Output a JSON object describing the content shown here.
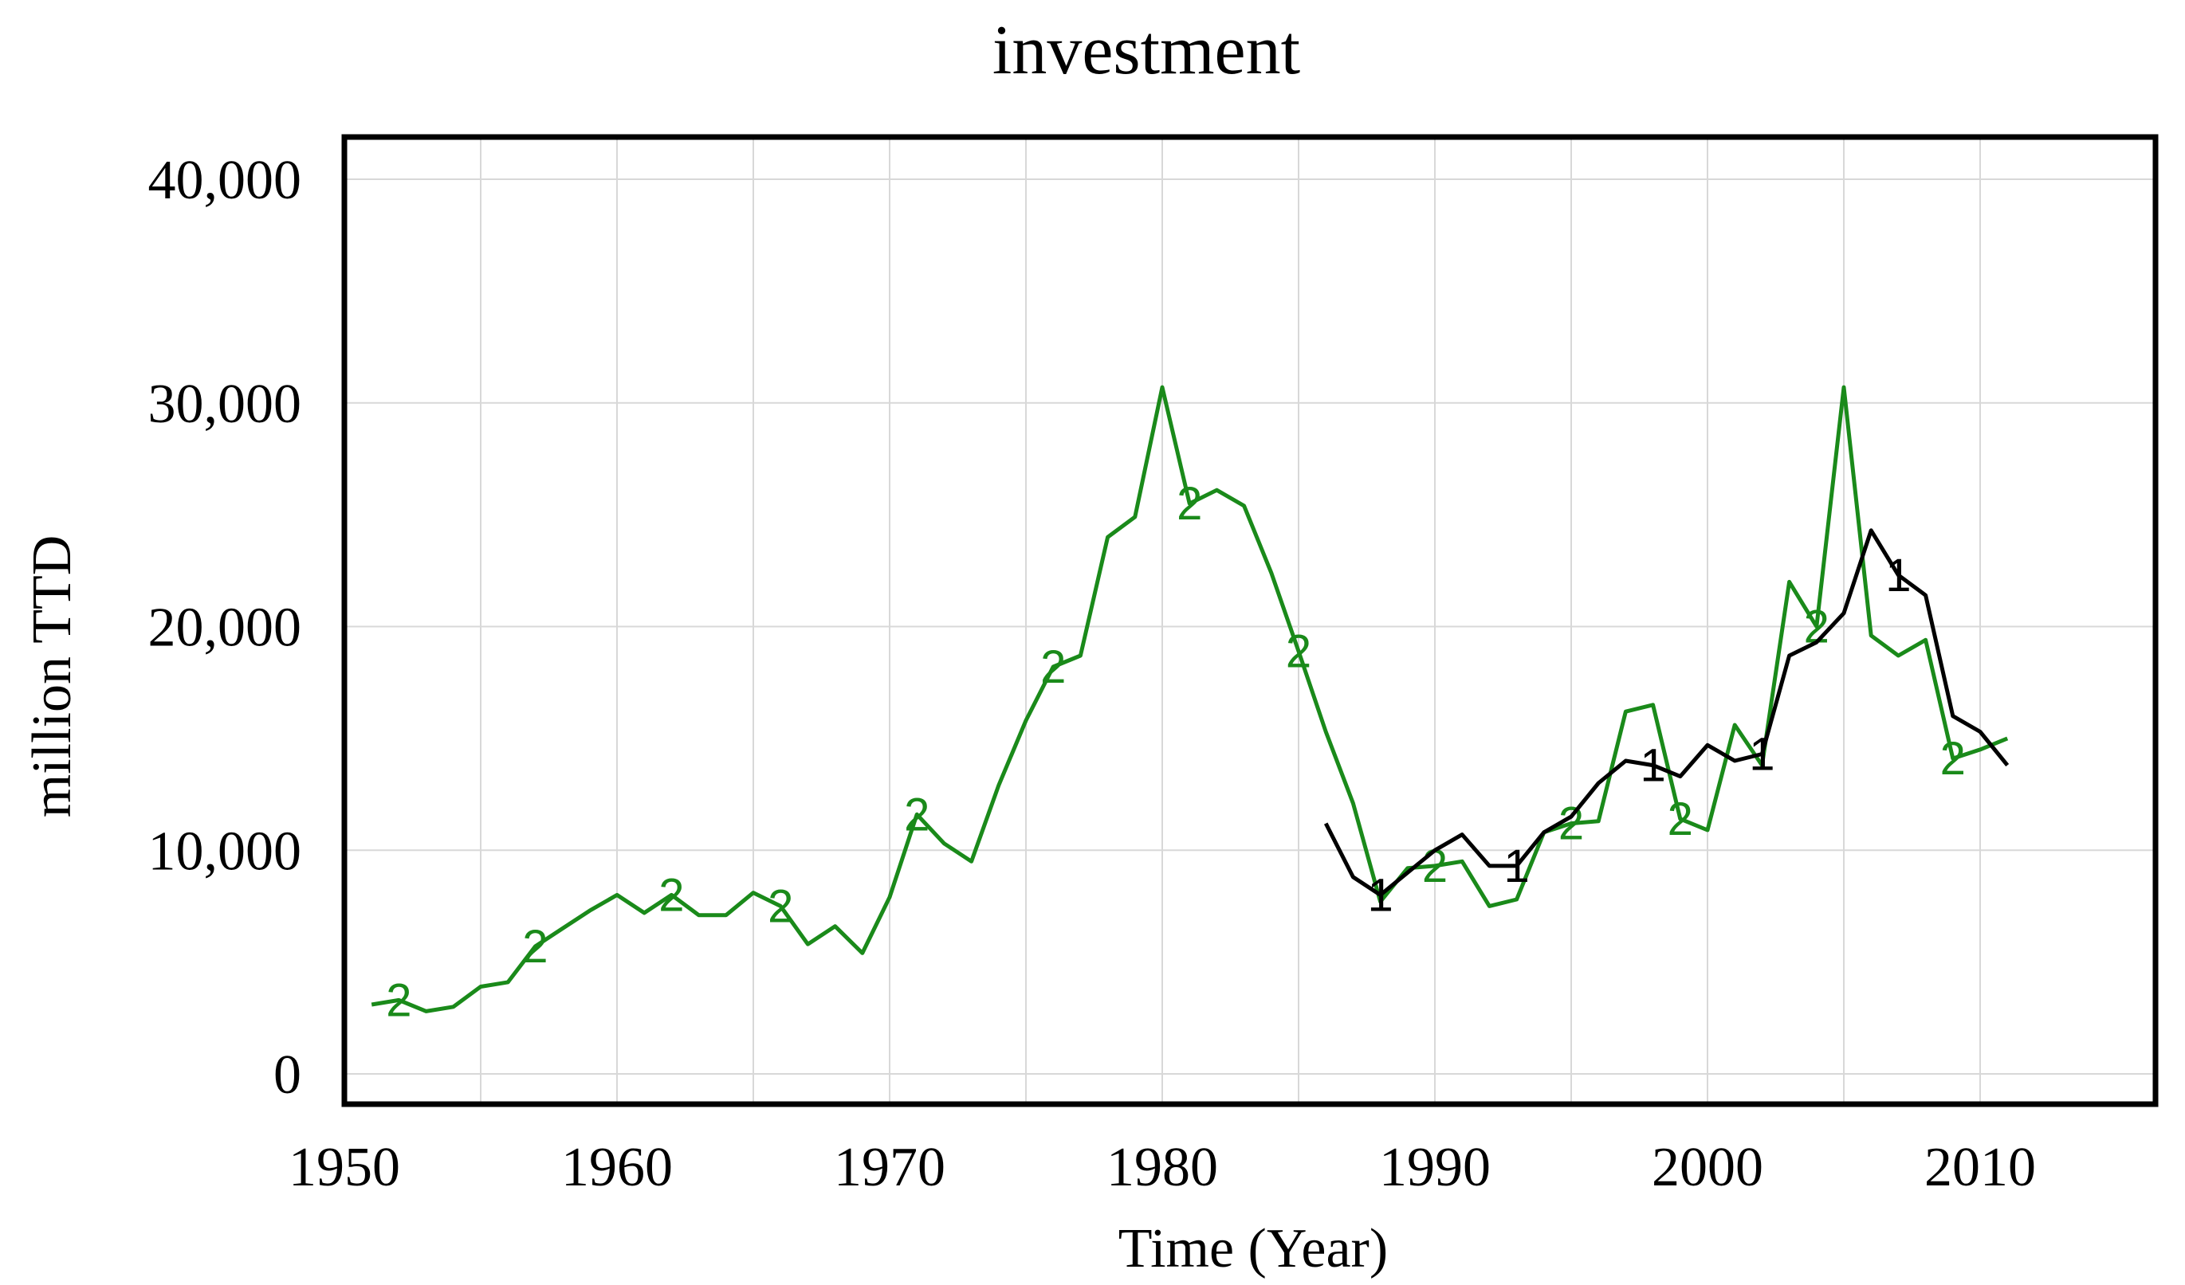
{
  "chart_data": {
    "type": "line",
    "title": "investment",
    "xlabel": "Time (Year)",
    "ylabel": "million TTD",
    "xlim": [
      1950,
      2015
    ],
    "ylim": [
      0,
      40000
    ],
    "x_ticks": [
      1950,
      1960,
      1970,
      1980,
      1990,
      2000,
      2010
    ],
    "y_ticks": [
      0,
      10000,
      20000,
      30000,
      40000
    ],
    "x_tick_labels": [
      "1950",
      "1960",
      "1970",
      "1980",
      "1990",
      "2000",
      "2010"
    ],
    "y_tick_labels": [
      "0",
      "10,000",
      "20,000",
      "30,000",
      "40,000"
    ],
    "grid": true,
    "series": [
      {
        "marker": "1",
        "color": "#000000",
        "x": [
          1986,
          1987,
          1988,
          1989,
          1990,
          1991,
          1992,
          1993,
          1994,
          1995,
          1996,
          1997,
          1998,
          1999,
          2000,
          2001,
          2002,
          2003,
          2004,
          2005,
          2006,
          2007,
          2008,
          2009,
          2010,
          2011
        ],
        "values": [
          11200,
          8800,
          8000,
          9000,
          10000,
          10700,
          9300,
          9300,
          10800,
          11500,
          13000,
          14000,
          13800,
          13300,
          14700,
          14000,
          14300,
          18700,
          19300,
          20600,
          24300,
          22300,
          21400,
          16000,
          15300,
          13800
        ],
        "marker_x": [
          1988,
          1993,
          1998,
          2002,
          2007
        ]
      },
      {
        "marker": "2",
        "color": "#1a8a1a",
        "x": [
          1951,
          1952,
          1953,
          1954,
          1955,
          1956,
          1957,
          1958,
          1959,
          1960,
          1961,
          1962,
          1963,
          1964,
          1965,
          1966,
          1967,
          1968,
          1969,
          1970,
          1971,
          1972,
          1973,
          1974,
          1975,
          1976,
          1977,
          1978,
          1979,
          1980,
          1981,
          1982,
          1983,
          1984,
          1985,
          1986,
          1987,
          1988,
          1989,
          1990,
          1991,
          1992,
          1993,
          1994,
          1995,
          1996,
          1997,
          1998,
          1999,
          2000,
          2001,
          2002,
          2003,
          2004,
          2005,
          2006,
          2007,
          2008,
          2009,
          2010,
          2011
        ],
        "values": [
          3100,
          3300,
          2800,
          3000,
          3900,
          4100,
          5700,
          6500,
          7300,
          8000,
          7200,
          8000,
          7100,
          7100,
          8100,
          7500,
          5800,
          6600,
          5400,
          7900,
          11600,
          10300,
          9500,
          12900,
          15800,
          18200,
          18700,
          24000,
          24900,
          30700,
          25500,
          26100,
          25400,
          22400,
          18900,
          15300,
          12100,
          7700,
          9200,
          9300,
          9500,
          7500,
          7800,
          10800,
          11200,
          11300,
          16200,
          16500,
          11400,
          10900,
          15600,
          13800,
          22000,
          20000,
          30700,
          19600,
          18700,
          19400,
          14100,
          14500,
          15000
        ],
        "marker_x": [
          1952,
          1957,
          1962,
          1966,
          1971,
          1976,
          1981,
          1985,
          1990,
          1995,
          1999,
          2004,
          2009
        ]
      }
    ]
  }
}
